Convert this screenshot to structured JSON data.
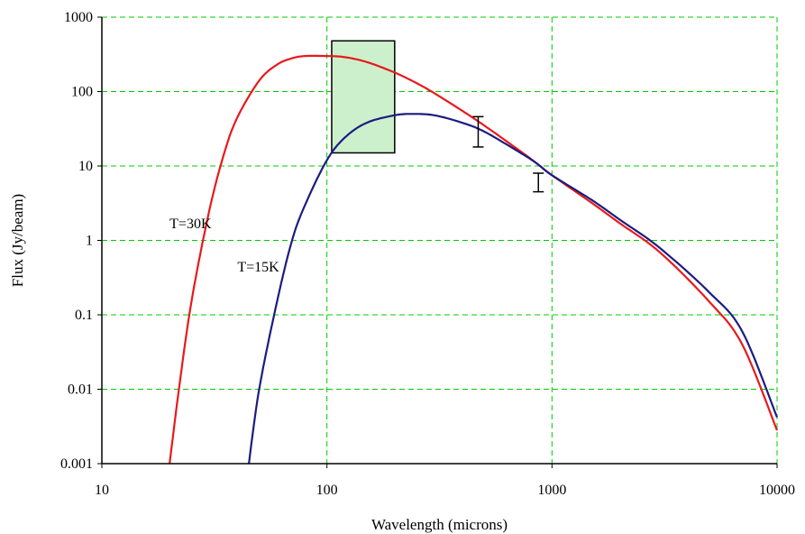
{
  "chart_data": {
    "type": "line",
    "title": "",
    "xlabel": "Wavelength (microns)",
    "ylabel": "Flux (Jy/beam)",
    "xscale": "log",
    "yscale": "log",
    "xlim": [
      10,
      10000
    ],
    "ylim": [
      0.001,
      1000
    ],
    "xticks": [
      "10",
      "100",
      "1000",
      "10000"
    ],
    "yticks": [
      "0.001",
      "0.01",
      "0.1",
      "1",
      "10",
      "100",
      "1000"
    ],
    "grid": true,
    "legend": "none",
    "series": [
      {
        "name": "T=30K",
        "color": "#e8191c",
        "x": [
          20,
          22,
          25,
          30,
          35,
          40,
          50,
          60,
          70,
          80,
          100,
          120,
          150,
          200,
          250,
          300,
          400,
          500,
          700,
          850,
          1000,
          1500,
          2000,
          3000,
          5000,
          7000,
          10000
        ],
        "y": [
          0.001,
          0.01,
          0.15,
          2.5,
          15,
          45,
          140,
          230,
          280,
          300,
          300,
          290,
          250,
          180,
          130,
          95,
          55,
          35,
          17,
          11,
          7.5,
          3.2,
          1.7,
          0.7,
          0.15,
          0.04,
          0.0028
        ]
      },
      {
        "name": "T=15K",
        "color": "#1c1c80",
        "x": [
          45,
          50,
          60,
          70,
          80,
          100,
          120,
          150,
          200,
          240,
          300,
          400,
          500,
          700,
          850,
          1000,
          1500,
          2000,
          3000,
          5000,
          7000,
          10000
        ],
        "y": [
          0.001,
          0.01,
          0.15,
          1,
          3,
          12,
          24,
          38,
          48,
          50,
          48,
          38,
          29,
          16,
          11,
          7.5,
          3.5,
          1.9,
          0.8,
          0.2,
          0.06,
          0.0042
        ]
      }
    ],
    "error_bars": [
      {
        "x": 470,
        "y": 27,
        "ylow": 18,
        "yhigh": 46
      },
      {
        "x": 870,
        "y": 6,
        "ylow": 4.5,
        "yhigh": 8
      }
    ],
    "highlight_box": {
      "x": [
        105,
        200
      ],
      "y": [
        15,
        480
      ],
      "fill": "#ccf0cc"
    },
    "annotations": [
      {
        "text": "T=30K",
        "x": 20,
        "y": 1.45
      },
      {
        "text": "T=15K",
        "x": 40,
        "y": 0.38
      }
    ]
  }
}
